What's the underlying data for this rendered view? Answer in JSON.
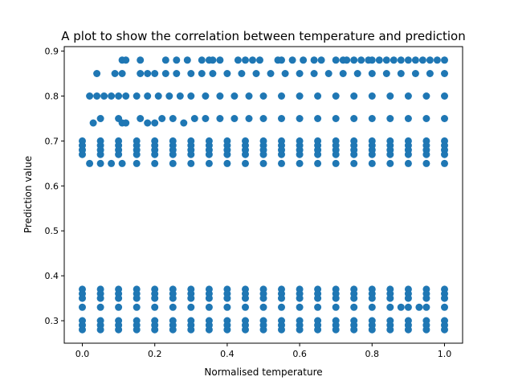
{
  "chart_data": {
    "type": "scatter",
    "title": "A plot to show the correlation between temperature and prediction",
    "xlabel": "Normalised temperature",
    "ylabel": "Prediction value",
    "xlim": [
      -0.05,
      1.05
    ],
    "ylim": [
      0.25,
      0.91
    ],
    "xticks": [
      {
        "value": 0.0,
        "label": "0.0"
      },
      {
        "value": 0.2,
        "label": "0.2"
      },
      {
        "value": 0.4,
        "label": "0.4"
      },
      {
        "value": 0.6,
        "label": "0.6"
      },
      {
        "value": 0.8,
        "label": "0.8"
      },
      {
        "value": 1.0,
        "label": "1.0"
      }
    ],
    "yticks": [
      {
        "value": 0.3,
        "label": "0.3"
      },
      {
        "value": 0.4,
        "label": "0.4"
      },
      {
        "value": 0.5,
        "label": "0.5"
      },
      {
        "value": 0.6,
        "label": "0.6"
      },
      {
        "value": 0.7,
        "label": "0.7"
      },
      {
        "value": 0.8,
        "label": "0.8"
      },
      {
        "value": 0.9,
        "label": "0.9"
      }
    ],
    "grid": false,
    "marker_color": "#1f77b4",
    "series": [
      {
        "x": [
          0.11,
          0.12,
          0.16,
          0.23,
          0.26,
          0.29,
          0.33,
          0.35,
          0.36,
          0.38,
          0.43,
          0.45,
          0.47,
          0.49,
          0.54,
          0.55,
          0.58,
          0.61,
          0.64,
          0.66,
          0.7,
          0.72,
          0.73,
          0.75,
          0.77,
          0.79,
          0.8,
          0.82,
          0.84,
          0.86,
          0.88,
          0.9,
          0.92,
          0.94,
          0.96,
          0.98,
          1.0,
          0.04,
          0.09,
          0.11,
          0.16,
          0.18,
          0.2,
          0.23,
          0.26,
          0.3,
          0.33,
          0.36,
          0.4,
          0.44,
          0.48,
          0.52,
          0.56,
          0.6,
          0.64,
          0.68,
          0.72,
          0.76,
          0.8,
          0.84,
          0.88,
          0.92,
          0.96,
          1.0,
          0.02,
          0.04,
          0.06,
          0.08,
          0.1,
          0.12,
          0.15,
          0.18,
          0.21,
          0.24,
          0.27,
          0.3,
          0.34,
          0.38,
          0.42,
          0.46,
          0.5,
          0.55,
          0.6,
          0.65,
          0.7,
          0.75,
          0.8,
          0.85,
          0.9,
          0.95,
          1.0,
          0.03,
          0.05,
          0.1,
          0.11,
          0.12,
          0.16,
          0.18,
          0.2,
          0.22,
          0.25,
          0.28,
          0.31,
          0.34,
          0.38,
          0.42,
          0.46,
          0.5,
          0.55,
          0.6,
          0.65,
          0.7,
          0.75,
          0.8,
          0.85,
          0.9,
          0.95,
          1.0,
          0.0,
          0.05,
          0.1,
          0.15,
          0.2,
          0.25,
          0.3,
          0.35,
          0.4,
          0.45,
          0.5,
          0.55,
          0.6,
          0.65,
          0.7,
          0.75,
          0.8,
          0.85,
          0.9,
          0.95,
          1.0,
          0.0,
          0.05,
          0.1,
          0.15,
          0.2,
          0.25,
          0.3,
          0.35,
          0.4,
          0.45,
          0.5,
          0.55,
          0.6,
          0.65,
          0.7,
          0.75,
          0.8,
          0.85,
          0.9,
          0.95,
          1.0,
          0.0,
          0.05,
          0.1,
          0.15,
          0.2,
          0.25,
          0.3,
          0.35,
          0.4,
          0.45,
          0.5,
          0.55,
          0.6,
          0.65,
          0.7,
          0.75,
          0.8,
          0.85,
          0.9,
          0.95,
          1.0,
          0.0,
          0.05,
          0.1,
          0.15,
          0.2,
          0.25,
          0.3,
          0.35,
          0.4,
          0.45,
          0.5,
          0.55,
          0.6,
          0.65,
          0.7,
          0.75,
          0.8,
          0.85,
          0.9,
          0.95,
          1.0,
          0.02,
          0.05,
          0.08,
          0.11,
          0.15,
          0.2,
          0.25,
          0.3,
          0.35,
          0.4,
          0.45,
          0.5,
          0.55,
          0.6,
          0.65,
          0.7,
          0.75,
          0.8,
          0.85,
          0.9,
          0.95,
          1.0,
          0.0,
          0.05,
          0.1,
          0.15,
          0.2,
          0.25,
          0.3,
          0.35,
          0.4,
          0.45,
          0.5,
          0.55,
          0.6,
          0.65,
          0.7,
          0.75,
          0.8,
          0.85,
          0.9,
          0.95,
          1.0,
          0.0,
          0.05,
          0.1,
          0.15,
          0.2,
          0.25,
          0.3,
          0.35,
          0.4,
          0.45,
          0.5,
          0.55,
          0.6,
          0.65,
          0.7,
          0.75,
          0.8,
          0.85,
          0.9,
          0.95,
          1.0,
          0.0,
          0.05,
          0.1,
          0.15,
          0.2,
          0.25,
          0.3,
          0.35,
          0.4,
          0.45,
          0.5,
          0.55,
          0.6,
          0.65,
          0.7,
          0.75,
          0.8,
          0.85,
          0.9,
          0.95,
          1.0,
          0.0,
          0.05,
          0.1,
          0.15,
          0.2,
          0.25,
          0.3,
          0.35,
          0.4,
          0.45,
          0.5,
          0.55,
          0.6,
          0.65,
          0.7,
          0.75,
          0.8,
          0.85,
          0.88,
          0.9,
          0.93,
          0.95,
          1.0,
          0.0,
          0.05,
          0.1,
          0.15,
          0.2,
          0.25,
          0.3,
          0.35,
          0.4,
          0.45,
          0.5,
          0.55,
          0.6,
          0.65,
          0.7,
          0.75,
          0.8,
          0.85,
          0.9,
          0.95,
          1.0,
          0.0,
          0.05,
          0.1,
          0.15,
          0.2,
          0.25,
          0.3,
          0.35,
          0.4,
          0.45,
          0.5,
          0.55,
          0.6,
          0.65,
          0.7,
          0.75,
          0.8,
          0.85,
          0.9,
          0.95,
          1.0,
          0.0,
          0.05,
          0.1,
          0.15,
          0.2,
          0.25,
          0.3,
          0.35,
          0.4,
          0.45,
          0.5,
          0.55,
          0.6,
          0.65,
          0.7,
          0.75,
          0.8,
          0.85,
          0.9,
          0.95,
          1.0
        ],
        "y": [
          0.88,
          0.88,
          0.88,
          0.88,
          0.88,
          0.88,
          0.88,
          0.88,
          0.88,
          0.88,
          0.88,
          0.88,
          0.88,
          0.88,
          0.88,
          0.88,
          0.88,
          0.88,
          0.88,
          0.88,
          0.88,
          0.88,
          0.88,
          0.88,
          0.88,
          0.88,
          0.88,
          0.88,
          0.88,
          0.88,
          0.88,
          0.88,
          0.88,
          0.88,
          0.88,
          0.88,
          0.88,
          0.85,
          0.85,
          0.85,
          0.85,
          0.85,
          0.85,
          0.85,
          0.85,
          0.85,
          0.85,
          0.85,
          0.85,
          0.85,
          0.85,
          0.85,
          0.85,
          0.85,
          0.85,
          0.85,
          0.85,
          0.85,
          0.85,
          0.85,
          0.85,
          0.85,
          0.85,
          0.85,
          0.8,
          0.8,
          0.8,
          0.8,
          0.8,
          0.8,
          0.8,
          0.8,
          0.8,
          0.8,
          0.8,
          0.8,
          0.8,
          0.8,
          0.8,
          0.8,
          0.8,
          0.8,
          0.8,
          0.8,
          0.8,
          0.8,
          0.8,
          0.8,
          0.8,
          0.8,
          0.8,
          0.74,
          0.75,
          0.75,
          0.74,
          0.74,
          0.75,
          0.74,
          0.74,
          0.75,
          0.75,
          0.74,
          0.75,
          0.75,
          0.75,
          0.75,
          0.75,
          0.75,
          0.75,
          0.75,
          0.75,
          0.75,
          0.75,
          0.75,
          0.75,
          0.75,
          0.75,
          0.75,
          0.7,
          0.7,
          0.7,
          0.7,
          0.7,
          0.7,
          0.7,
          0.7,
          0.7,
          0.7,
          0.7,
          0.7,
          0.7,
          0.7,
          0.7,
          0.7,
          0.7,
          0.7,
          0.7,
          0.7,
          0.7,
          0.69,
          0.69,
          0.69,
          0.69,
          0.69,
          0.69,
          0.69,
          0.69,
          0.69,
          0.69,
          0.69,
          0.69,
          0.69,
          0.69,
          0.69,
          0.69,
          0.69,
          0.69,
          0.69,
          0.69,
          0.69,
          0.68,
          0.68,
          0.68,
          0.68,
          0.68,
          0.68,
          0.68,
          0.68,
          0.68,
          0.68,
          0.68,
          0.68,
          0.68,
          0.68,
          0.68,
          0.68,
          0.68,
          0.68,
          0.68,
          0.68,
          0.68,
          0.67,
          0.67,
          0.67,
          0.67,
          0.67,
          0.67,
          0.67,
          0.67,
          0.67,
          0.67,
          0.67,
          0.67,
          0.67,
          0.67,
          0.67,
          0.67,
          0.67,
          0.67,
          0.67,
          0.67,
          0.67,
          0.65,
          0.65,
          0.65,
          0.65,
          0.65,
          0.65,
          0.65,
          0.65,
          0.65,
          0.65,
          0.65,
          0.65,
          0.65,
          0.65,
          0.65,
          0.65,
          0.65,
          0.65,
          0.65,
          0.65,
          0.65,
          0.65,
          0.37,
          0.37,
          0.37,
          0.37,
          0.37,
          0.37,
          0.37,
          0.37,
          0.37,
          0.37,
          0.37,
          0.37,
          0.37,
          0.37,
          0.37,
          0.37,
          0.37,
          0.37,
          0.37,
          0.37,
          0.37,
          0.36,
          0.36,
          0.36,
          0.36,
          0.36,
          0.36,
          0.36,
          0.36,
          0.36,
          0.36,
          0.36,
          0.36,
          0.36,
          0.36,
          0.36,
          0.36,
          0.36,
          0.36,
          0.36,
          0.36,
          0.36,
          0.35,
          0.35,
          0.35,
          0.35,
          0.35,
          0.35,
          0.35,
          0.35,
          0.35,
          0.35,
          0.35,
          0.35,
          0.35,
          0.35,
          0.35,
          0.35,
          0.35,
          0.35,
          0.35,
          0.35,
          0.35,
          0.33,
          0.33,
          0.33,
          0.33,
          0.33,
          0.33,
          0.33,
          0.33,
          0.33,
          0.33,
          0.33,
          0.33,
          0.33,
          0.33,
          0.33,
          0.33,
          0.33,
          0.33,
          0.33,
          0.33,
          0.33,
          0.33,
          0.33,
          0.3,
          0.3,
          0.3,
          0.3,
          0.3,
          0.3,
          0.3,
          0.3,
          0.3,
          0.3,
          0.3,
          0.3,
          0.3,
          0.3,
          0.3,
          0.3,
          0.3,
          0.3,
          0.3,
          0.3,
          0.3,
          0.29,
          0.29,
          0.29,
          0.29,
          0.29,
          0.29,
          0.29,
          0.29,
          0.29,
          0.29,
          0.29,
          0.29,
          0.29,
          0.29,
          0.29,
          0.29,
          0.29,
          0.29,
          0.29,
          0.29,
          0.29,
          0.28,
          0.28,
          0.28,
          0.28,
          0.28,
          0.28,
          0.28,
          0.28,
          0.28,
          0.28,
          0.28,
          0.28,
          0.28,
          0.28,
          0.28,
          0.28,
          0.28,
          0.28,
          0.28,
          0.28,
          0.28
        ]
      }
    ]
  }
}
